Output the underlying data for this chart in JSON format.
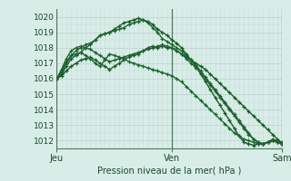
{
  "bg_color": "#d8ede8",
  "plot_bg": "#d8ede8",
  "grid_color_v": "#c8ddd8",
  "grid_color_h": "#c0d0cc",
  "day_line_color": "#4a7a5a",
  "line_colors": [
    "#1a5a28",
    "#1a5a28",
    "#1a6830",
    "#1a6830",
    "#246030"
  ],
  "ylim": [
    1011.5,
    1020.5
  ],
  "yticks": [
    1012,
    1013,
    1014,
    1015,
    1016,
    1017,
    1018,
    1019,
    1020
  ],
  "xlabel": "Pression niveau de la mer( hPa )",
  "day_labels": [
    "Jeu",
    "Ven",
    "Sam"
  ],
  "day_positions": [
    0,
    24,
    47
  ],
  "n_points": 48,
  "series": [
    [
      1016.0,
      1016.2,
      1016.5,
      1016.8,
      1017.0,
      1017.2,
      1017.3,
      1017.4,
      1017.2,
      1017.0,
      1016.8,
      1016.6,
      1016.8,
      1017.0,
      1017.2,
      1017.4,
      1017.5,
      1017.6,
      1017.8,
      1018.0,
      1018.1,
      1018.0,
      1018.1,
      1018.0,
      1018.0,
      1017.8,
      1017.6,
      1017.4,
      1017.2,
      1017.0,
      1016.8,
      1016.6,
      1016.3,
      1016.0,
      1015.7,
      1015.4,
      1015.1,
      1014.8,
      1014.5,
      1014.2,
      1013.9,
      1013.6,
      1013.3,
      1013.0,
      1012.7,
      1012.4,
      1012.1,
      1011.8
    ],
    [
      1016.0,
      1016.3,
      1016.8,
      1017.3,
      1017.5,
      1017.7,
      1018.0,
      1018.2,
      1018.5,
      1018.8,
      1018.9,
      1019.0,
      1019.2,
      1019.4,
      1019.6,
      1019.7,
      1019.8,
      1019.9,
      1019.8,
      1019.7,
      1019.5,
      1019.2,
      1019.0,
      1018.8,
      1018.5,
      1018.3,
      1018.0,
      1017.6,
      1017.2,
      1016.8,
      1016.3,
      1015.8,
      1015.3,
      1014.8,
      1014.3,
      1013.8,
      1013.3,
      1012.8,
      1012.3,
      1011.9,
      1011.8,
      1011.7,
      1011.8,
      1011.8,
      1011.9,
      1012.0,
      1011.9,
      1011.8
    ],
    [
      1016.0,
      1016.4,
      1017.0,
      1017.5,
      1017.8,
      1018.0,
      1018.2,
      1018.3,
      1018.5,
      1018.8,
      1018.9,
      1019.0,
      1019.1,
      1019.2,
      1019.3,
      1019.5,
      1019.6,
      1019.7,
      1019.8,
      1019.6,
      1019.3,
      1019.0,
      1018.6,
      1018.4,
      1018.2,
      1018.0,
      1017.8,
      1017.5,
      1017.2,
      1016.9,
      1016.5,
      1016.1,
      1015.7,
      1015.3,
      1014.9,
      1014.5,
      1014.1,
      1013.7,
      1013.3,
      1012.9,
      1012.5,
      1012.1,
      1011.9,
      1011.8,
      1011.9,
      1012.0,
      1011.9,
      1011.8
    ],
    [
      1016.0,
      1016.5,
      1017.1,
      1017.5,
      1017.6,
      1017.7,
      1017.5,
      1017.3,
      1017.0,
      1016.8,
      1017.2,
      1017.6,
      1017.5,
      1017.4,
      1017.3,
      1017.1,
      1017.0,
      1016.9,
      1016.8,
      1016.7,
      1016.6,
      1016.5,
      1016.4,
      1016.3,
      1016.2,
      1016.0,
      1015.8,
      1015.5,
      1015.2,
      1014.9,
      1014.6,
      1014.3,
      1014.0,
      1013.7,
      1013.4,
      1013.1,
      1012.8,
      1012.5,
      1012.3,
      1012.1,
      1012.0,
      1011.9,
      1011.8,
      1011.8,
      1011.9,
      1012.0,
      1011.9,
      1011.8
    ],
    [
      1016.0,
      1016.6,
      1017.3,
      1017.8,
      1018.0,
      1018.1,
      1018.0,
      1017.9,
      1017.7,
      1017.5,
      1017.3,
      1017.1,
      1017.2,
      1017.3,
      1017.4,
      1017.5,
      1017.6,
      1017.7,
      1017.8,
      1017.9,
      1018.0,
      1018.1,
      1018.2,
      1018.1,
      1018.0,
      1017.8,
      1017.6,
      1017.3,
      1017.0,
      1016.7,
      1016.4,
      1016.0,
      1015.6,
      1015.2,
      1014.8,
      1014.4,
      1014.0,
      1013.6,
      1013.2,
      1012.8,
      1012.4,
      1012.1,
      1011.9,
      1011.8,
      1011.9,
      1012.1,
      1012.0,
      1011.9
    ]
  ],
  "marker": "+",
  "markersize": 3.5,
  "linewidth": 1.0
}
